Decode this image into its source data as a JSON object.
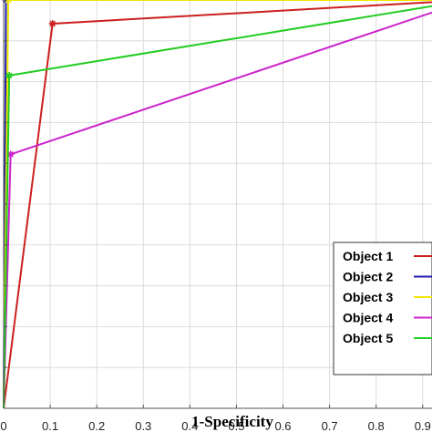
{
  "chart_data": {
    "type": "line",
    "xlabel": "1-Specificity",
    "xlim": [
      0,
      0.92
    ],
    "ylim": [
      0,
      1
    ],
    "x_ticks": [
      "0",
      "0.1",
      "0.2",
      "0.3",
      "0.4",
      "0.5",
      "0.6",
      "0.7",
      "0.8",
      "0.9"
    ],
    "grid": true,
    "legend_position": "bottom-right",
    "series": [
      {
        "name": "Object 1",
        "color": "#cc1f1f",
        "points": [
          [
            0,
            0
          ],
          [
            0.105,
            0.942
          ],
          [
            1,
            1
          ]
        ]
      },
      {
        "name": "Object 2",
        "color": "#1f1fb0",
        "points": [
          [
            0,
            0
          ],
          [
            0.005,
            1.0
          ],
          [
            1,
            1
          ]
        ]
      },
      {
        "name": "Object 3",
        "color": "#f2e600",
        "points": [
          [
            0,
            0
          ],
          [
            0.01,
            1.0
          ],
          [
            1,
            1
          ]
        ]
      },
      {
        "name": "Object 4",
        "color": "#cc22cc",
        "points": [
          [
            0,
            0
          ],
          [
            0.015,
            0.622
          ],
          [
            1,
            1
          ]
        ]
      },
      {
        "name": "Object 5",
        "color": "#22cc22",
        "points": [
          [
            0,
            0
          ],
          [
            0.012,
            0.815
          ],
          [
            1,
            1
          ]
        ]
      }
    ]
  }
}
